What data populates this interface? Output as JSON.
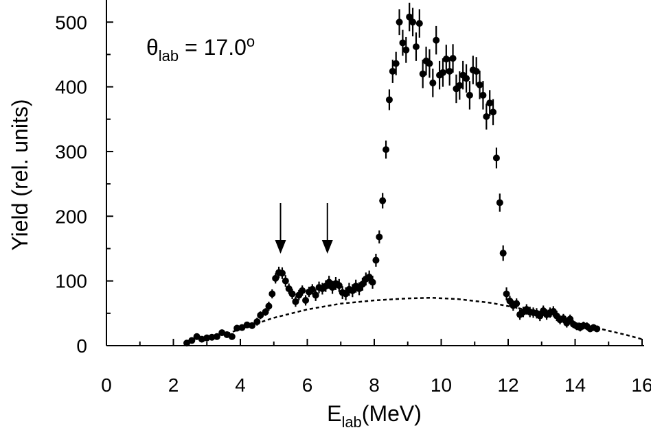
{
  "chart_data": {
    "type": "scatter",
    "title": "",
    "annotation": {
      "symbol": "θ",
      "subscript": "lab",
      "text": " = 17.0",
      "superscript": "o"
    },
    "xlabel": {
      "main": "E",
      "subscript": "lab",
      "suffix": "(MeV)"
    },
    "ylabel": "Yield (rel. units)",
    "xlim": [
      0,
      16
    ],
    "ylim": [
      0,
      520
    ],
    "xticks": [
      0,
      2,
      4,
      6,
      8,
      10,
      12,
      14,
      16
    ],
    "xtick_labels": [
      "0",
      "2",
      "4",
      "6",
      "8",
      "10",
      "12",
      "14",
      "16"
    ],
    "yticks": [
      0,
      100,
      200,
      300,
      400,
      500
    ],
    "ytick_labels": [
      "0",
      "100",
      "200",
      "300",
      "400",
      "500"
    ],
    "grid": false,
    "arrows_at_x": [
      5.2,
      6.6
    ],
    "series": [
      {
        "kind": "points_with_errorbars",
        "points": [
          [
            2.4,
            4,
            3
          ],
          [
            2.55,
            8,
            3
          ],
          [
            2.7,
            14,
            4
          ],
          [
            2.85,
            10,
            4
          ],
          [
            3.0,
            12,
            4
          ],
          [
            3.15,
            13,
            4
          ],
          [
            3.3,
            14,
            4
          ],
          [
            3.45,
            20,
            4
          ],
          [
            3.6,
            17,
            4
          ],
          [
            3.75,
            14,
            4
          ],
          [
            3.9,
            27,
            5
          ],
          [
            4.05,
            28,
            5
          ],
          [
            4.2,
            32,
            5
          ],
          [
            4.35,
            31,
            5
          ],
          [
            4.5,
            37,
            6
          ],
          [
            4.6,
            47,
            6
          ],
          [
            4.75,
            52,
            6
          ],
          [
            4.85,
            61,
            7
          ],
          [
            4.95,
            80,
            7
          ],
          [
            5.05,
            104,
            8
          ],
          [
            5.15,
            113,
            9
          ],
          [
            5.25,
            112,
            9
          ],
          [
            5.35,
            100,
            9
          ],
          [
            5.45,
            88,
            8
          ],
          [
            5.55,
            80,
            8
          ],
          [
            5.65,
            68,
            8
          ],
          [
            5.75,
            78,
            8
          ],
          [
            5.85,
            85,
            8
          ],
          [
            5.95,
            70,
            8
          ],
          [
            6.05,
            83,
            8
          ],
          [
            6.15,
            87,
            8
          ],
          [
            6.25,
            78,
            9
          ],
          [
            6.35,
            90,
            9
          ],
          [
            6.45,
            88,
            9
          ],
          [
            6.55,
            92,
            9
          ],
          [
            6.65,
            98,
            10
          ],
          [
            6.75,
            90,
            10
          ],
          [
            6.85,
            96,
            10
          ],
          [
            6.95,
            93,
            10
          ],
          [
            7.05,
            82,
            10
          ],
          [
            7.15,
            80,
            10
          ],
          [
            7.25,
            87,
            10
          ],
          [
            7.35,
            85,
            10
          ],
          [
            7.45,
            92,
            10
          ],
          [
            7.55,
            88,
            10
          ],
          [
            7.65,
            95,
            10
          ],
          [
            7.75,
            103,
            10
          ],
          [
            7.85,
            106,
            10
          ],
          [
            7.95,
            98,
            10
          ],
          [
            8.05,
            132,
            10
          ],
          [
            8.15,
            168,
            10
          ],
          [
            8.25,
            224,
            12
          ],
          [
            8.35,
            303,
            14
          ],
          [
            8.45,
            380,
            16
          ],
          [
            8.55,
            424,
            18
          ],
          [
            8.65,
            436,
            18
          ],
          [
            8.75,
            500,
            20
          ],
          [
            8.85,
            468,
            20
          ],
          [
            8.95,
            457,
            20
          ],
          [
            9.05,
            508,
            22
          ],
          [
            9.15,
            500,
            22
          ],
          [
            9.25,
            462,
            22
          ],
          [
            9.35,
            498,
            22
          ],
          [
            9.45,
            420,
            22
          ],
          [
            9.55,
            440,
            22
          ],
          [
            9.65,
            436,
            22
          ],
          [
            9.75,
            406,
            22
          ],
          [
            9.85,
            472,
            22
          ],
          [
            9.95,
            418,
            22
          ],
          [
            10.05,
            422,
            22
          ],
          [
            10.15,
            443,
            22
          ],
          [
            10.25,
            424,
            22
          ],
          [
            10.35,
            444,
            22
          ],
          [
            10.45,
            397,
            22
          ],
          [
            10.55,
            402,
            22
          ],
          [
            10.65,
            418,
            22
          ],
          [
            10.75,
            413,
            22
          ],
          [
            10.85,
            387,
            22
          ],
          [
            10.95,
            426,
            22
          ],
          [
            11.05,
            424,
            22
          ],
          [
            11.15,
            403,
            22
          ],
          [
            11.25,
            387,
            22
          ],
          [
            11.35,
            354,
            20
          ],
          [
            11.45,
            375,
            20
          ],
          [
            11.55,
            361,
            20
          ],
          [
            11.65,
            290,
            16
          ],
          [
            11.75,
            221,
            14
          ],
          [
            11.85,
            143,
            12
          ],
          [
            11.95,
            80,
            10
          ],
          [
            12.05,
            69,
            8
          ],
          [
            12.15,
            62,
            8
          ],
          [
            12.25,
            65,
            8
          ],
          [
            12.35,
            48,
            8
          ],
          [
            12.45,
            52,
            8
          ],
          [
            12.55,
            56,
            8
          ],
          [
            12.65,
            52,
            8
          ],
          [
            12.75,
            51,
            8
          ],
          [
            12.85,
            50,
            8
          ],
          [
            12.95,
            46,
            8
          ],
          [
            13.05,
            54,
            8
          ],
          [
            13.15,
            48,
            8
          ],
          [
            13.25,
            51,
            8
          ],
          [
            13.35,
            53,
            8
          ],
          [
            13.45,
            46,
            8
          ],
          [
            13.55,
            40,
            7
          ],
          [
            13.65,
            42,
            7
          ],
          [
            13.75,
            35,
            7
          ],
          [
            13.85,
            41,
            7
          ],
          [
            13.95,
            33,
            6
          ],
          [
            14.05,
            30,
            6
          ],
          [
            14.15,
            28,
            6
          ],
          [
            14.25,
            31,
            6
          ],
          [
            14.35,
            30,
            6
          ],
          [
            14.45,
            26,
            5
          ],
          [
            14.55,
            28,
            5
          ],
          [
            14.65,
            26,
            5
          ]
        ]
      },
      {
        "kind": "dashed_line",
        "points": [
          [
            3.6,
            18
          ],
          [
            4.0,
            26
          ],
          [
            5.0,
            43
          ],
          [
            6.0,
            56
          ],
          [
            7.0,
            65
          ],
          [
            8.0,
            70
          ],
          [
            9.0,
            73
          ],
          [
            9.7,
            74
          ],
          [
            10.5,
            72
          ],
          [
            11.5,
            66
          ],
          [
            12.5,
            56
          ],
          [
            13.5,
            43
          ],
          [
            14.5,
            29
          ],
          [
            15.5,
            17
          ],
          [
            16.0,
            10
          ]
        ]
      }
    ]
  }
}
